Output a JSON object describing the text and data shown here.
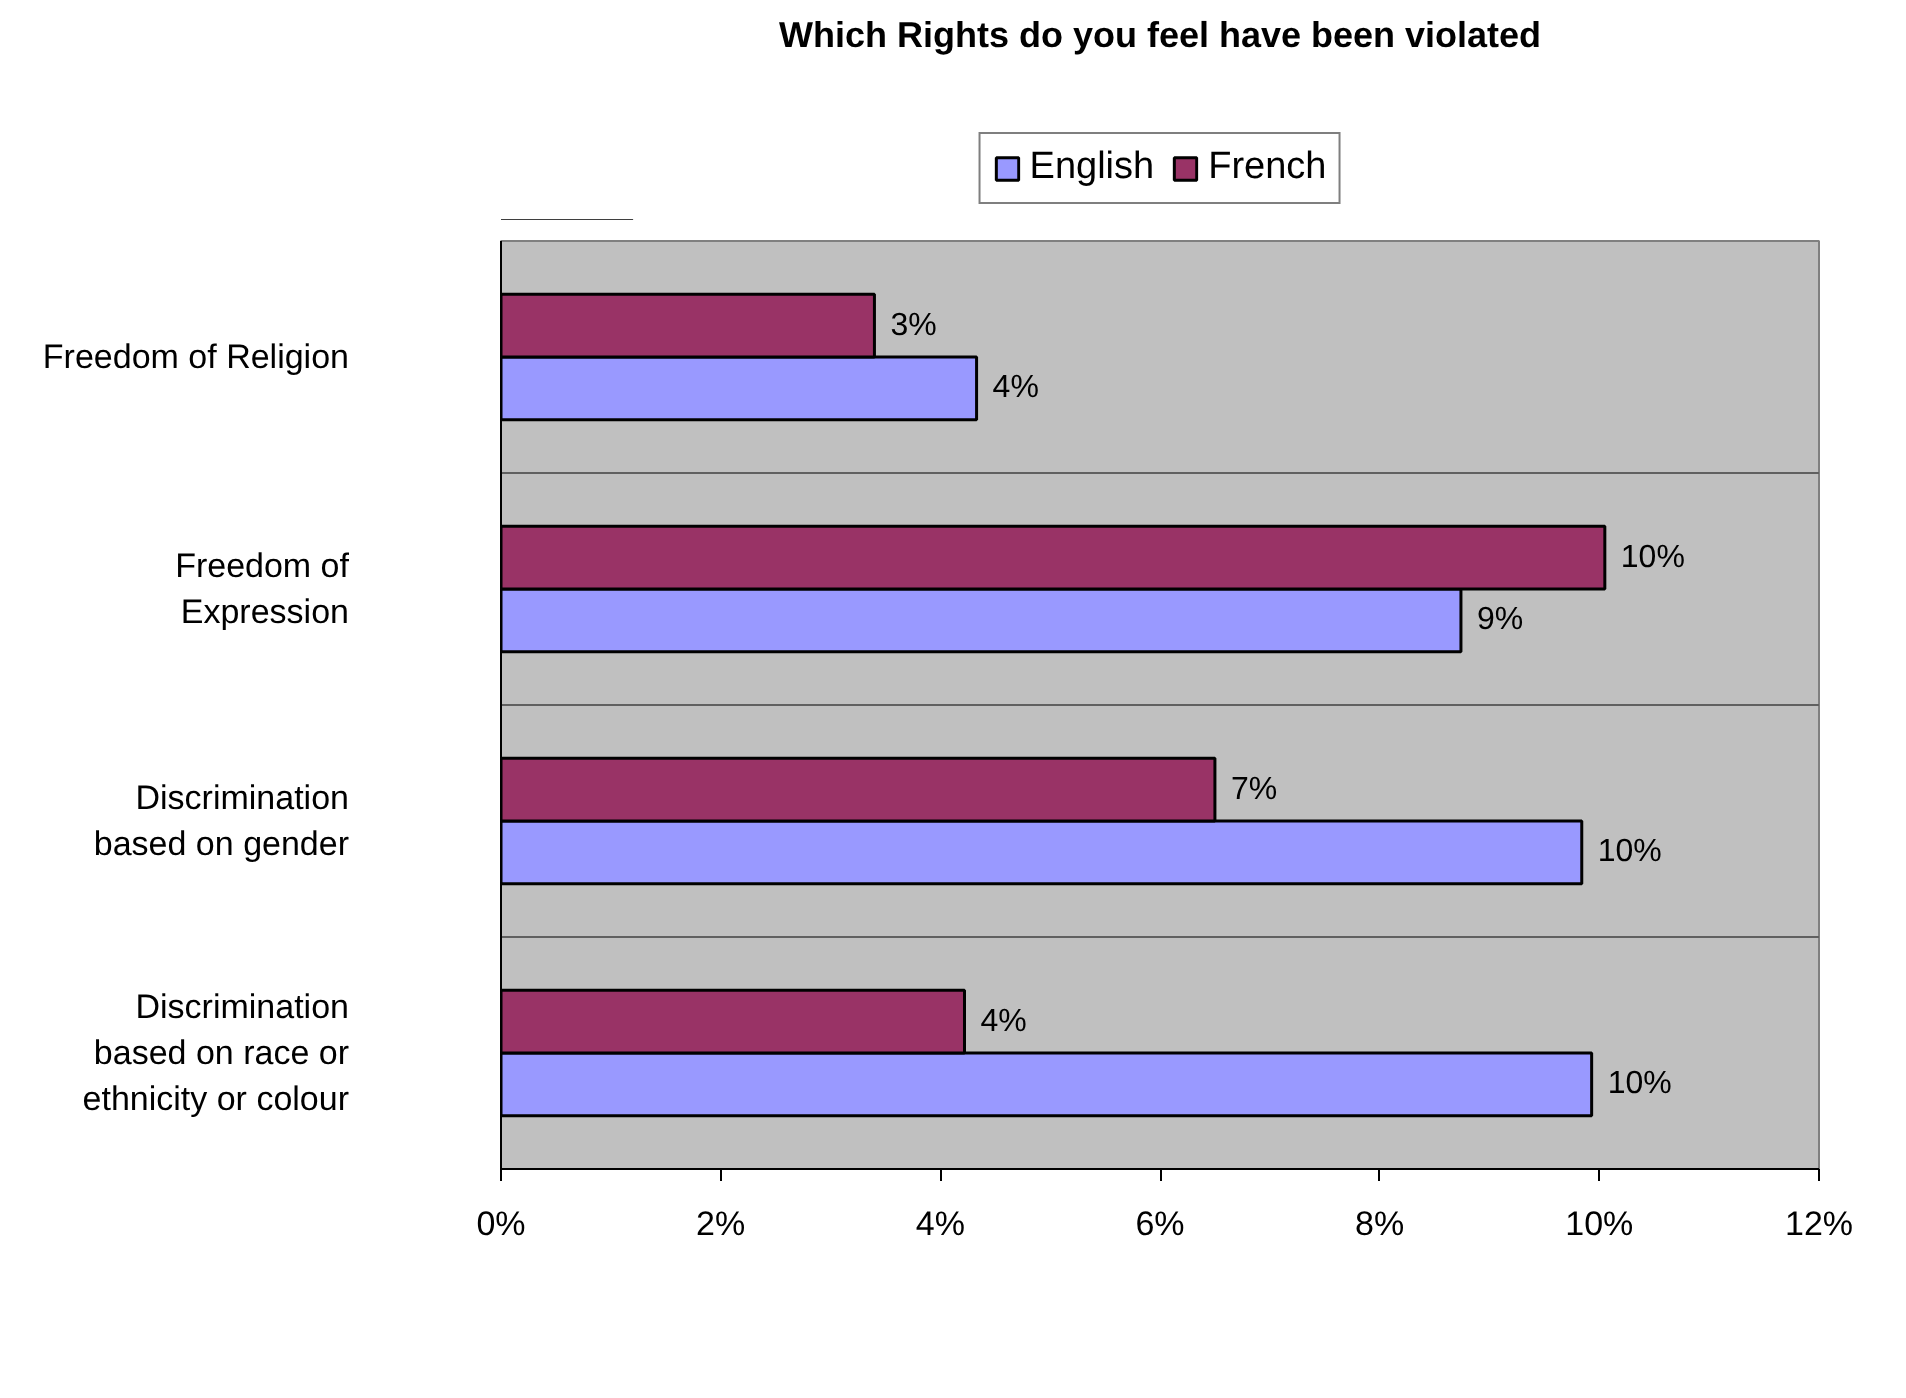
{
  "chart_data": {
    "type": "bar",
    "orientation": "horizontal",
    "title": "Which Rights do you feel have been violated",
    "categories": [
      "Freedom of Religion",
      "Freedom of Expression",
      "Discrimination based on gender",
      "Discrimination based on race or ethnicity or colour"
    ],
    "series": [
      {
        "name": "English",
        "color": "#9999ff",
        "values": [
          4.33,
          8.74,
          9.84,
          9.93
        ],
        "value_labels": [
          "4%",
          "9%",
          "10%",
          "10%"
        ]
      },
      {
        "name": "French",
        "color": "#993366",
        "values": [
          3.4,
          10.05,
          6.5,
          4.22
        ],
        "value_labels": [
          "3%",
          "10%",
          "7%",
          "4%"
        ]
      }
    ],
    "xlim": [
      0,
      12
    ],
    "xticks": [
      {
        "value": 0,
        "label": "0%"
      },
      {
        "value": 2,
        "label": "2%"
      },
      {
        "value": 4,
        "label": "4%"
      },
      {
        "value": 6,
        "label": "6%"
      },
      {
        "value": 8,
        "label": "8%"
      },
      {
        "value": 10,
        "label": "10%"
      },
      {
        "value": 12,
        "label": "12%"
      }
    ],
    "grid": "y",
    "legend": "top"
  }
}
